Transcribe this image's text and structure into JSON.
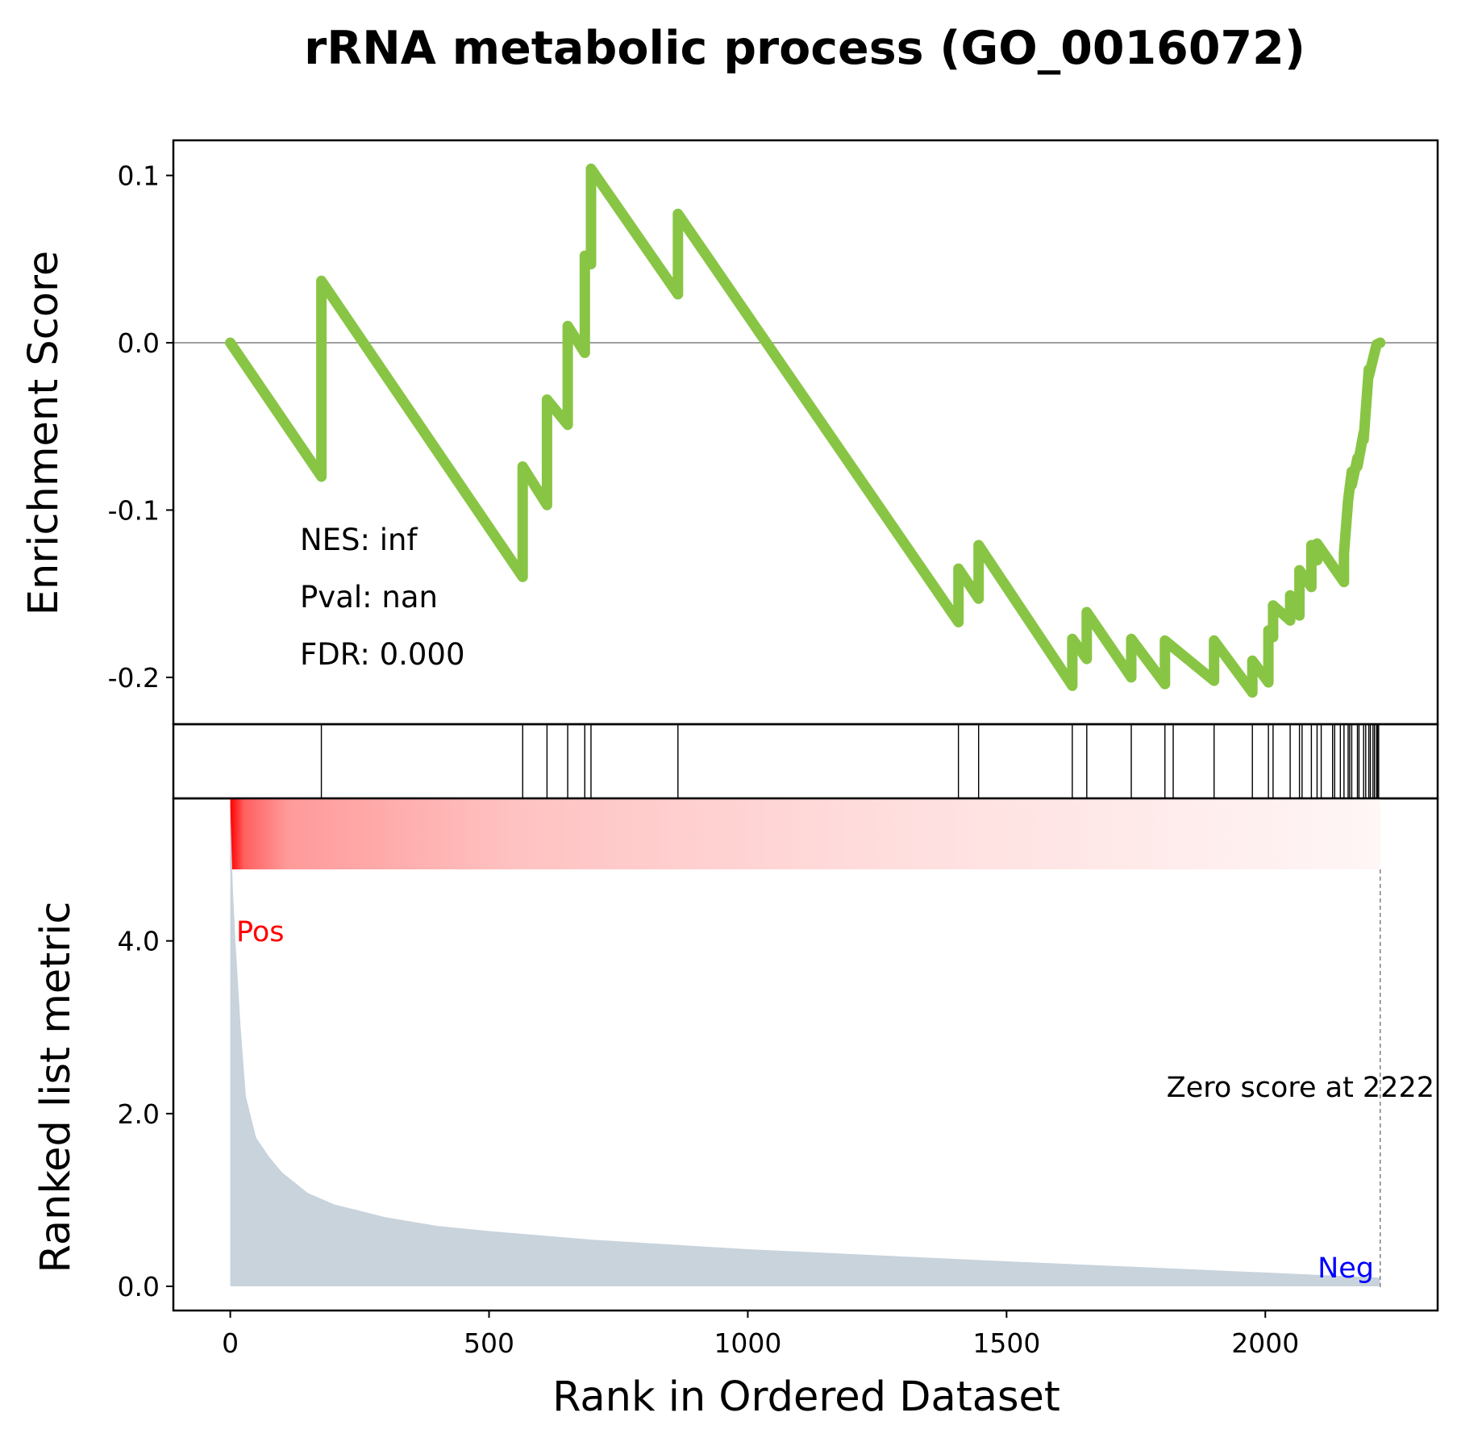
{
  "chart_data": {
    "type": "line",
    "title": "rRNA metabolic process (GO_0016072)",
    "xlabel": "Rank in Ordered Dataset",
    "xlim": [
      -110,
      2333
    ],
    "x_ticks": [
      0,
      500,
      1000,
      1500,
      2000
    ],
    "x_tick_labels": [
      "0",
      "500",
      "1000",
      "1500",
      "2000"
    ],
    "enrichment_panel": {
      "ylabel": "Enrichment Score",
      "ylim": [
        -0.228,
        0.121
      ],
      "y_ticks": [
        0.1,
        0.0,
        -0.1,
        -0.2
      ],
      "y_tick_labels": [
        "0.1",
        "0.0",
        "-0.1",
        "-0.2"
      ],
      "line_color": "#88c544",
      "zero_line": true,
      "stats": [
        "NES: inf",
        "Pval: nan",
        "FDR: 0.000"
      ],
      "series": [
        {
          "x": [
            0,
            176,
            176,
            565,
            565,
            612,
            612,
            652,
            652,
            685,
            685,
            697,
            697,
            865,
            865,
            1407,
            1407,
            1446,
            1446,
            1627,
            1627,
            1655,
            1655,
            1741,
            1741,
            1806,
            1806,
            1901,
            1901,
            1975,
            1975,
            2006,
            2006,
            2015,
            2015,
            2048,
            2048,
            2066,
            2066,
            2089,
            2089,
            2100,
            2100,
            2152,
            2152,
            2160,
            2160,
            2167,
            2167,
            2178,
            2178,
            2190,
            2190,
            2200,
            2200,
            2215,
            2222
          ],
          "y": [
            0.0,
            -0.08,
            0.037,
            -0.14,
            -0.074,
            -0.097,
            -0.034,
            -0.049,
            0.01,
            -0.006,
            0.052,
            0.047,
            0.104,
            0.029,
            0.077,
            -0.167,
            -0.135,
            -0.153,
            -0.121,
            -0.205,
            -0.177,
            -0.189,
            -0.161,
            -0.2,
            -0.177,
            -0.204,
            -0.178,
            -0.202,
            -0.178,
            -0.209,
            -0.19,
            -0.203,
            -0.172,
            -0.176,
            -0.157,
            -0.166,
            -0.151,
            -0.163,
            -0.136,
            -0.146,
            -0.121,
            -0.13,
            -0.12,
            -0.143,
            -0.126,
            -0.094,
            -0.094,
            -0.077,
            -0.085,
            -0.069,
            -0.074,
            -0.054,
            -0.058,
            -0.016,
            -0.02,
            -0.001,
            0.0
          ]
        }
      ]
    },
    "hit_panel": {
      "hits": [
        176,
        565,
        612,
        652,
        685,
        697,
        865,
        1407,
        1446,
        1627,
        1655,
        1741,
        1806,
        1822,
        1901,
        1975,
        2006,
        2015,
        2048,
        2066,
        2071,
        2089,
        2100,
        2108,
        2130,
        2134,
        2145,
        2152,
        2160,
        2163,
        2167,
        2178,
        2181,
        2190,
        2194,
        2200,
        2203,
        2208,
        2211,
        2215,
        2217,
        2219
      ]
    },
    "metric_panel": {
      "ylabel": "Ranked list metric",
      "ylim": [
        -0.28,
        5.65
      ],
      "y_ticks": [
        0.0,
        2.0,
        4.0
      ],
      "y_tick_labels": [
        "0.0",
        "2.0",
        "4.0"
      ],
      "fill_color": "#c8d3dc",
      "x": [
        0,
        5,
        10,
        20,
        30,
        50,
        75,
        100,
        150,
        200,
        300,
        400,
        500,
        700,
        1000,
        1500,
        2000,
        2222
      ],
      "y": [
        5.55,
        4.6,
        4.0,
        3.0,
        2.2,
        1.72,
        1.5,
        1.32,
        1.08,
        0.95,
        0.8,
        0.7,
        0.64,
        0.54,
        0.43,
        0.29,
        0.16,
        0.1
      ],
      "pos_label": "Pos",
      "neg_label": "Neg",
      "pos_color": "#ff0000",
      "neg_color": "#0000ff",
      "zero_score_rank": 2222,
      "zero_score_label": "Zero score at 2222",
      "gradient_colors": [
        "#ff0000",
        "#ffffff"
      ]
    }
  }
}
